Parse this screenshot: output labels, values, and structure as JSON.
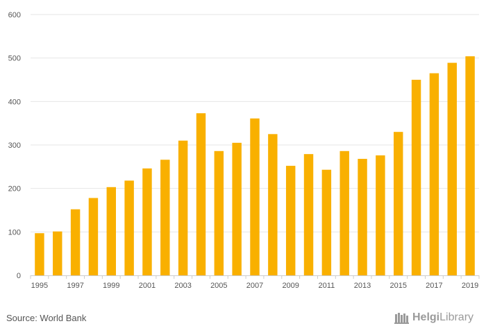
{
  "chart_data": {
    "type": "bar",
    "categories": [
      "1995",
      "1996",
      "1997",
      "1998",
      "1999",
      "2000",
      "2001",
      "2002",
      "2003",
      "2004",
      "2005",
      "2006",
      "2007",
      "2008",
      "2009",
      "2010",
      "2011",
      "2012",
      "2013",
      "2014",
      "2015",
      "2016",
      "2017",
      "2018",
      "2019"
    ],
    "values": [
      97,
      101,
      152,
      178,
      203,
      218,
      246,
      266,
      310,
      373,
      286,
      305,
      361,
      325,
      252,
      279,
      243,
      286,
      268,
      276,
      330,
      450,
      465,
      489,
      504
    ],
    "x_tick_labels": [
      "1995",
      "1997",
      "1999",
      "2001",
      "2003",
      "2005",
      "2007",
      "2009",
      "2011",
      "2013",
      "2015",
      "2017",
      "2019"
    ],
    "y_ticks": [
      0,
      100,
      200,
      300,
      400,
      500,
      600
    ],
    "ylim": [
      0,
      600
    ],
    "grid": true,
    "bar_color": "#f9b000",
    "title": "",
    "xlabel": "",
    "ylabel": ""
  },
  "footer": {
    "source": "Source: World Bank",
    "brand_bold": "Helgi",
    "brand_light": "Library"
  },
  "colors": {
    "grid": "#e6e6e6",
    "axis": "#cccccc",
    "text": "#555555",
    "brand": "#9a9a9a"
  }
}
